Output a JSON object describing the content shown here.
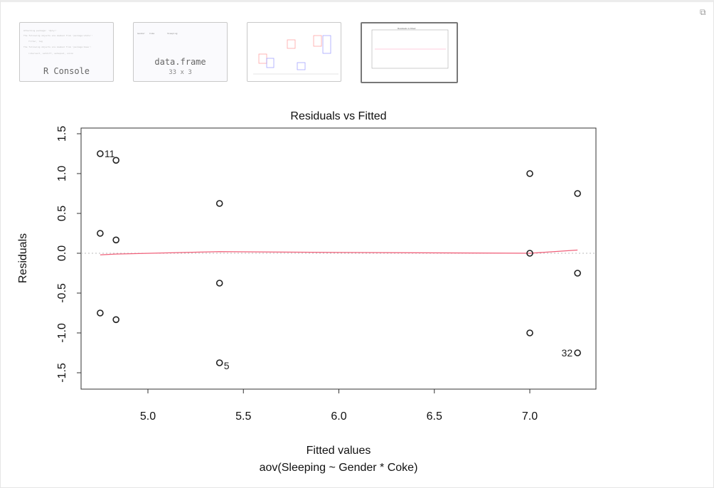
{
  "thumbnails": [
    {
      "label": "R Console",
      "lines": [
        "Attaching package: 'dplyr'",
        "The following objects are masked from 'package:stats':",
        "filter, lag",
        "The following objects are masked from 'package:base':",
        "intersect, setdiff, setequal, union"
      ]
    },
    {
      "label": "data.frame",
      "sub": "33 x 3",
      "header": [
        "Gender",
        "Coke",
        "Sleeping"
      ]
    },
    {
      "label": "boxplot"
    },
    {
      "label": "Residuals vs Fitted",
      "selected": true
    }
  ],
  "icons": {
    "popout": "popout-window-icon"
  },
  "chart_data": {
    "type": "scatter",
    "title": "Residuals vs Fitted",
    "xlabel": "Fitted values",
    "subtitle": "aov(Sleeping ~ Gender * Coke)",
    "ylabel": "Residuals",
    "xlim": [
      4.68,
      7.38
    ],
    "ylim": [
      -1.7,
      1.6
    ],
    "xticks": [
      "5.0",
      "5.5",
      "6.0",
      "6.5",
      "7.0"
    ],
    "yticks": [
      "-1.5",
      "-1.0",
      "-0.5",
      "0.0",
      "0.5",
      "1.0",
      "1.5"
    ],
    "points": [
      {
        "x": 4.75,
        "y": 1.25,
        "label": "11"
      },
      {
        "x": 4.75,
        "y": 0.25
      },
      {
        "x": 4.75,
        "y": -0.75
      },
      {
        "x": 4.833,
        "y": 1.167
      },
      {
        "x": 4.833,
        "y": 0.167
      },
      {
        "x": 4.833,
        "y": -0.833
      },
      {
        "x": 5.375,
        "y": 0.625
      },
      {
        "x": 5.375,
        "y": -0.375
      },
      {
        "x": 5.375,
        "y": -1.375,
        "label": "5"
      },
      {
        "x": 7.0,
        "y": 1.0
      },
      {
        "x": 7.0,
        "y": 0.0
      },
      {
        "x": 7.0,
        "y": -1.0
      },
      {
        "x": 7.25,
        "y": 0.75
      },
      {
        "x": 7.25,
        "y": -0.25
      },
      {
        "x": 7.25,
        "y": -1.25,
        "label": "32"
      }
    ],
    "smooth": {
      "color": "#f0607a",
      "x": [
        4.75,
        4.833,
        5.375,
        6.0,
        7.0,
        7.25
      ],
      "y": [
        -0.02,
        -0.01,
        0.02,
        0.01,
        0.0,
        0.04
      ]
    },
    "reference_line": {
      "y": 0,
      "style": "dotted",
      "color": "#bbbbbb"
    },
    "grid": false
  }
}
